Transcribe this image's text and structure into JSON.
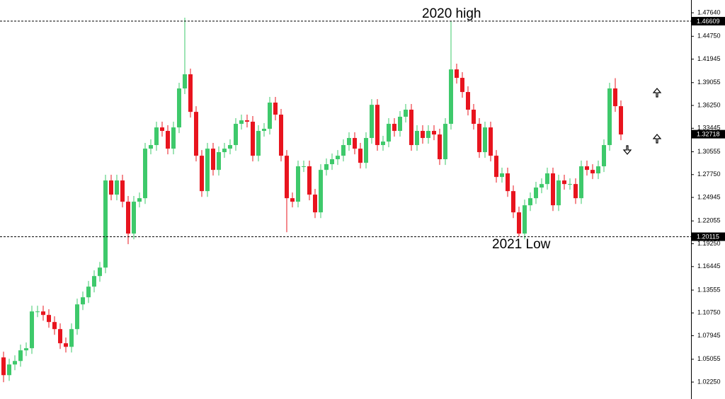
{
  "chart_data": {
    "type": "candlestick",
    "up_color": "#3ec96b",
    "down_color": "#e8141e",
    "ylim": [
      1.0095,
      1.4921
    ],
    "yticks": [
      {
        "value": 1.4764,
        "label": "1.47640"
      },
      {
        "value": 1.4475,
        "label": "1.44750"
      },
      1.41945,
      1.39055,
      {
        "value": 1.3625,
        "label": "1.36250"
      },
      1.33445,
      1.30555,
      {
        "value": 1.2775,
        "label": "1.27750"
      },
      1.24945,
      1.22055,
      {
        "value": 1.1925,
        "label": "1.19250"
      },
      1.16445,
      1.13555,
      {
        "value": 1.1075,
        "label": "1.10750"
      },
      1.07945,
      1.05055,
      {
        "value": 1.0225,
        "label": "1.02250"
      }
    ],
    "reference_lines": [
      {
        "value": 1.46609,
        "text": "2020 high"
      },
      {
        "value": 1.20115,
        "text": "2021 Low"
      }
    ],
    "current_price": 1.32718,
    "open": [
      1.0528,
      1.031,
      1.0441,
      1.0484,
      1.0615,
      1.0641,
      1.1093,
      1.1093,
      1.105,
      1.0963,
      1.0876,
      1.0702,
      1.0658,
      1.0876,
      1.118,
      1.1267,
      1.1398,
      1.1528,
      1.1632,
      1.2703,
      1.2529,
      1.2703,
      1.2442,
      1.205,
      1.2442,
      1.2485,
      1.3094,
      1.3138,
      1.3355,
      1.3312,
      1.3094,
      1.3355,
      1.3834,
      1.4008,
      1.3546,
      1.3007,
      1.2572,
      1.3094,
      1.2833,
      1.3051,
      1.3094,
      1.3138,
      1.3399,
      1.3442,
      1.3425,
      1.3007,
      1.3312,
      1.3338,
      1.366,
      1.3512,
      1.3007,
      1.2485,
      1.2442,
      1.2877,
      1.2877,
      1.2529,
      1.2311,
      1.2833,
      1.2903,
      1.2964,
      1.3007,
      1.3138,
      1.3225,
      1.3094,
      1.292,
      1.3225,
      1.3633,
      1.3138,
      1.3181,
      1.3399,
      1.3312,
      1.3486,
      1.3573,
      1.3138,
      1.3312,
      1.3225,
      1.3312,
      1.3268,
      1.2964,
      1.3399,
      1.4068,
      1.3964,
      1.379,
      1.3573,
      1.3399,
      1.3051,
      1.3355,
      1.3007,
      1.2746,
      1.279,
      1.2572,
      1.2311,
      1.205,
      1.2398,
      1.2485,
      1.2616,
      1.2659,
      1.279,
      1.2398,
      1.2703,
      1.2659,
      1.2659,
      1.2485,
      1.2877,
      1.2833,
      1.279,
      1.2877,
      1.3138,
      1.3834,
      1.3616
    ],
    "high": [
      1.0598,
      1.0511,
      1.0554,
      1.0685,
      1.0711,
      1.1163,
      1.1163,
      1.1163,
      1.112,
      1.1033,
      1.0946,
      1.0772,
      1.0946,
      1.125,
      1.1337,
      1.1468,
      1.1598,
      1.1702,
      1.2773,
      1.2773,
      1.2773,
      1.2773,
      1.2512,
      1.2512,
      1.2555,
      1.3164,
      1.3208,
      1.3425,
      1.3425,
      1.3382,
      1.3425,
      1.3904,
      1.4704,
      1.4078,
      1.3616,
      1.3077,
      1.3164,
      1.3164,
      1.3121,
      1.3164,
      1.3208,
      1.3469,
      1.3512,
      1.3512,
      1.3495,
      1.3382,
      1.3408,
      1.373,
      1.373,
      1.3582,
      1.3077,
      1.2555,
      1.2947,
      1.2947,
      1.2947,
      1.2599,
      1.2903,
      1.2973,
      1.3034,
      1.3077,
      1.3208,
      1.3295,
      1.3295,
      1.3164,
      1.3295,
      1.3703,
      1.3703,
      1.3251,
      1.3469,
      1.3469,
      1.3556,
      1.3643,
      1.3643,
      1.3382,
      1.3382,
      1.3382,
      1.3382,
      1.3338,
      1.3469,
      1.4661,
      1.4138,
      1.4034,
      1.386,
      1.3643,
      1.3469,
      1.3425,
      1.3425,
      1.3077,
      1.286,
      1.286,
      1.2642,
      1.2381,
      1.2468,
      1.2555,
      1.2686,
      1.2729,
      1.286,
      1.286,
      1.2773,
      1.2773,
      1.2729,
      1.2729,
      1.2947,
      1.2947,
      1.2903,
      1.2947,
      1.3208,
      1.3904,
      1.396,
      1.3686
    ],
    "low": [
      1.0223,
      1.024,
      1.0371,
      1.0414,
      1.0545,
      1.0571,
      1.1023,
      1.098,
      1.0893,
      1.0806,
      1.0632,
      1.0588,
      1.0588,
      1.0806,
      1.111,
      1.1197,
      1.1328,
      1.1458,
      1.1562,
      1.2459,
      1.2459,
      1.2372,
      1.192,
      1.198,
      1.2372,
      1.2415,
      1.3024,
      1.3068,
      1.3242,
      1.3024,
      1.3024,
      1.3285,
      1.3764,
      1.3476,
      1.2937,
      1.2502,
      1.2502,
      1.2763,
      1.2763,
      1.2981,
      1.3024,
      1.3068,
      1.3329,
      1.3355,
      1.2937,
      1.2937,
      1.3242,
      1.3268,
      1.3442,
      1.2937,
      1.2067,
      1.2372,
      1.2372,
      1.2807,
      1.2459,
      1.2241,
      1.2241,
      1.2763,
      1.2833,
      1.2894,
      1.2937,
      1.3068,
      1.3024,
      1.285,
      1.285,
      1.3155,
      1.3068,
      1.3068,
      1.3111,
      1.3242,
      1.3242,
      1.3416,
      1.3068,
      1.3068,
      1.3155,
      1.3155,
      1.3198,
      1.2894,
      1.2894,
      1.3329,
      1.3894,
      1.372,
      1.3503,
      1.3329,
      1.2981,
      1.2981,
      1.2937,
      1.2676,
      1.2676,
      1.2502,
      1.2241,
      1.2012,
      1.198,
      1.2328,
      1.2415,
      1.2546,
      1.2589,
      1.2328,
      1.2328,
      1.2589,
      1.2589,
      1.2415,
      1.2415,
      1.2763,
      1.272,
      1.272,
      1.2807,
      1.3068,
      1.3546,
      1.3198
    ],
    "close": [
      1.031,
      1.0441,
      1.0484,
      1.0615,
      1.0641,
      1.1093,
      1.1093,
      1.105,
      1.0963,
      1.0876,
      1.0702,
      1.0658,
      1.0876,
      1.118,
      1.1267,
      1.1398,
      1.1528,
      1.1632,
      1.2703,
      1.2529,
      1.2703,
      1.2442,
      1.205,
      1.2442,
      1.2485,
      1.3094,
      1.3138,
      1.3355,
      1.3312,
      1.3094,
      1.3355,
      1.3834,
      1.4008,
      1.3546,
      1.3007,
      1.2572,
      1.3094,
      1.2833,
      1.3051,
      1.3094,
      1.3138,
      1.3399,
      1.3442,
      1.3425,
      1.3007,
      1.3312,
      1.3338,
      1.366,
      1.3512,
      1.3007,
      1.2485,
      1.2442,
      1.2877,
      1.2877,
      1.2529,
      1.2311,
      1.2833,
      1.2903,
      1.2964,
      1.3007,
      1.3138,
      1.3225,
      1.3094,
      1.292,
      1.3225,
      1.3633,
      1.3138,
      1.3181,
      1.3399,
      1.3312,
      1.3486,
      1.3573,
      1.3138,
      1.3312,
      1.3225,
      1.3312,
      1.3268,
      1.2964,
      1.3399,
      1.4068,
      1.3964,
      1.379,
      1.3573,
      1.3399,
      1.3051,
      1.3355,
      1.3007,
      1.2746,
      1.279,
      1.2572,
      1.2311,
      1.205,
      1.2398,
      1.2485,
      1.2616,
      1.2659,
      1.279,
      1.2398,
      1.2703,
      1.2659,
      1.2659,
      1.2485,
      1.2877,
      1.2833,
      1.279,
      1.2877,
      1.3138,
      1.3834,
      1.3616,
      1.3268
    ]
  }
}
